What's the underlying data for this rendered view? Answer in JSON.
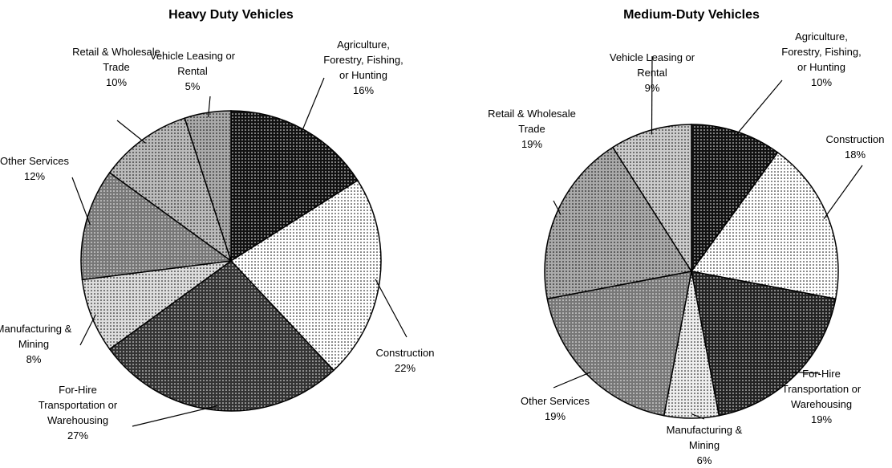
{
  "chart_data": [
    {
      "type": "pie",
      "title": "Heavy Duty Vehicles",
      "categories": [
        "Agriculture, Forestry, Fishing, or Hunting",
        "Construction",
        "For-Hire Transportation or Warehousing",
        "Manufacturing & Mining",
        "Other Services",
        "Retail & Wholesale Trade",
        "Vehicle Leasing or Rental"
      ],
      "values": [
        16,
        22,
        27,
        8,
        12,
        10,
        5
      ],
      "value_labels": [
        "16%",
        "22%",
        "27%",
        "8%",
        "12%",
        "10%",
        "5%"
      ],
      "colors": [
        "#111111",
        "#ffffff",
        "#333333",
        "#dddddd",
        "#777777",
        "#bbbbbb",
        "#aaaaaa"
      ]
    },
    {
      "type": "pie",
      "title": "Medium-Duty Vehicles",
      "categories": [
        "Agriculture, Forestry, Fishing, or Hunting",
        "Construction",
        "For-Hire Transportation or Warehousing",
        "Manufacturing & Mining",
        "Other Services",
        "Retail & Wholesale Trade",
        "Vehicle Leasing or Rental"
      ],
      "values": [
        10,
        18,
        19,
        6,
        19,
        19,
        9
      ],
      "value_labels": [
        "10%",
        "18%",
        "19%",
        "6%",
        "19%",
        "19%",
        "9%"
      ],
      "colors": [
        "#111111",
        "#ffffff",
        "#222222",
        "#eeeeee",
        "#777777",
        "#aaaaaa",
        "#cccccc"
      ]
    }
  ]
}
